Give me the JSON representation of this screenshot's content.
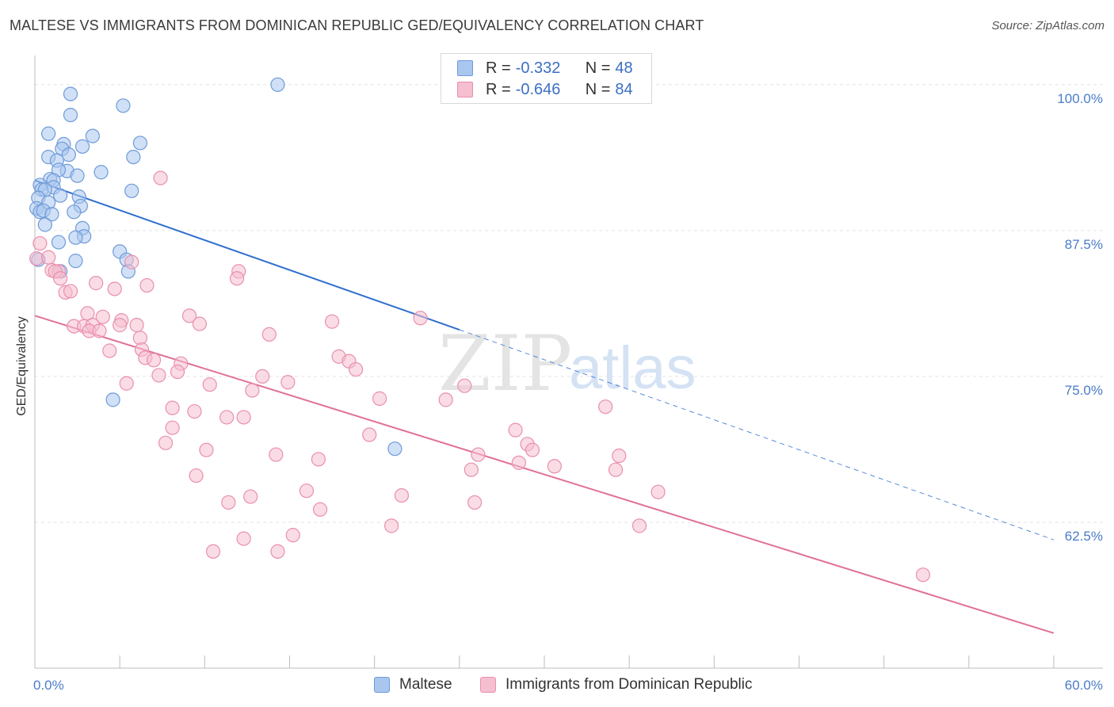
{
  "title": "MALTESE VS IMMIGRANTS FROM DOMINICAN REPUBLIC GED/EQUIVALENCY CORRELATION CHART",
  "source": "Source: ZipAtlas.com",
  "watermark": {
    "zip": "ZIP",
    "atlas": "atlas"
  },
  "legend": {
    "rows": [
      {
        "r_label": "R = ",
        "r_value": "-0.332",
        "n_label": "N = ",
        "n_value": "48",
        "color": "#a9c6ef",
        "border": "#6f9bd9"
      },
      {
        "r_label": "R = ",
        "r_value": "-0.646",
        "n_label": "N = ",
        "n_value": "84",
        "color": "#f6bfd0",
        "border": "#e98fae"
      }
    ]
  },
  "bottom_legend": [
    {
      "label": "Maltese",
      "color": "#a9c6ef",
      "border": "#6f9bd9"
    },
    {
      "label": "Immigrants from Dominican Republic",
      "color": "#f6bfd0",
      "border": "#e98fae"
    }
  ],
  "chart_data": {
    "type": "scatter",
    "title": "MALTESE VS IMMIGRANTS FROM DOMINICAN REPUBLIC GED/EQUIVALENCY CORRELATION CHART",
    "xlabel": "",
    "ylabel": "GED/Equivalency",
    "xlim": [
      0,
      60
    ],
    "ylim": [
      50,
      102.5
    ],
    "x_tick_labels": [
      "0.0%",
      "60.0%"
    ],
    "y_ticks": [
      62.5,
      75.0,
      87.5,
      100.0
    ],
    "y_tick_labels": [
      "62.5%",
      "75.0%",
      "87.5%",
      "100.0%"
    ],
    "grid": true,
    "legend_position": "top-center",
    "series": [
      {
        "name": "Maltese",
        "color": "#6f9bd9",
        "fill": "#a9c6ef",
        "trend": {
          "x": [
            0,
            25
          ],
          "y": [
            91.8,
            79.0
          ],
          "dashed_to": [
            60,
            61.0
          ],
          "color": "#2f6fce"
        },
        "points": [
          [
            14.3,
            100
          ],
          [
            2.1,
            99.2
          ],
          [
            5.2,
            98.2
          ],
          [
            2.1,
            97.4
          ],
          [
            0.8,
            95.8
          ],
          [
            3.4,
            95.6
          ],
          [
            6.2,
            95.0
          ],
          [
            1.7,
            94.9
          ],
          [
            2.8,
            94.7
          ],
          [
            1.6,
            94.5
          ],
          [
            2.0,
            94.0
          ],
          [
            0.8,
            93.8
          ],
          [
            1.3,
            93.5
          ],
          [
            5.8,
            93.8
          ],
          [
            1.9,
            92.6
          ],
          [
            3.9,
            92.5
          ],
          [
            1.4,
            92.7
          ],
          [
            2.5,
            92.2
          ],
          [
            0.9,
            91.9
          ],
          [
            1.1,
            91.8
          ],
          [
            0.3,
            91.4
          ],
          [
            0.4,
            91.0
          ],
          [
            1.1,
            91.2
          ],
          [
            0.6,
            91.0
          ],
          [
            5.7,
            90.9
          ],
          [
            1.5,
            90.5
          ],
          [
            2.6,
            90.4
          ],
          [
            0.2,
            90.3
          ],
          [
            0.8,
            89.9
          ],
          [
            2.7,
            89.6
          ],
          [
            0.1,
            89.4
          ],
          [
            0.3,
            89.1
          ],
          [
            0.5,
            89.2
          ],
          [
            2.3,
            89.1
          ],
          [
            1.0,
            88.9
          ],
          [
            0.6,
            88.0
          ],
          [
            2.8,
            87.7
          ],
          [
            2.9,
            87.0
          ],
          [
            2.4,
            86.9
          ],
          [
            1.4,
            86.5
          ],
          [
            5.0,
            85.7
          ],
          [
            5.4,
            85.0
          ],
          [
            2.4,
            84.9
          ],
          [
            0.2,
            85.0
          ],
          [
            1.5,
            84.0
          ],
          [
            5.5,
            84.0
          ],
          [
            4.6,
            73.0
          ],
          [
            21.2,
            68.8
          ]
        ]
      },
      {
        "name": "Immigrants from Dominican Republic",
        "color": "#e98fae",
        "fill": "#f6bfd0",
        "trend": {
          "x": [
            0,
            60
          ],
          "y": [
            80.2,
            53.0
          ],
          "color": "#e0709a"
        },
        "points": [
          [
            0.3,
            86.4
          ],
          [
            0.1,
            85.1
          ],
          [
            0.8,
            85.2
          ],
          [
            1.0,
            84.1
          ],
          [
            1.4,
            84.0
          ],
          [
            1.2,
            84.0
          ],
          [
            5.7,
            84.8
          ],
          [
            12.0,
            84.0
          ],
          [
            1.5,
            83.4
          ],
          [
            3.6,
            83.0
          ],
          [
            4.7,
            82.5
          ],
          [
            6.6,
            82.8
          ],
          [
            11.9,
            83.4
          ],
          [
            1.8,
            82.2
          ],
          [
            2.1,
            82.3
          ],
          [
            7.4,
            92.0
          ],
          [
            3.1,
            80.4
          ],
          [
            9.1,
            80.2
          ],
          [
            4.0,
            80.1
          ],
          [
            5.1,
            79.8
          ],
          [
            2.3,
            79.3
          ],
          [
            17.5,
            79.7
          ],
          [
            22.7,
            80.0
          ],
          [
            2.9,
            79.3
          ],
          [
            3.4,
            79.4
          ],
          [
            6.0,
            79.4
          ],
          [
            9.7,
            79.5
          ],
          [
            5.0,
            79.4
          ],
          [
            3.2,
            78.9
          ],
          [
            3.8,
            78.9
          ],
          [
            13.8,
            78.6
          ],
          [
            6.2,
            78.3
          ],
          [
            4.4,
            77.2
          ],
          [
            6.3,
            77.3
          ],
          [
            6.5,
            76.6
          ],
          [
            17.9,
            76.7
          ],
          [
            7.0,
            76.4
          ],
          [
            18.5,
            76.3
          ],
          [
            8.6,
            76.1
          ],
          [
            8.4,
            75.4
          ],
          [
            7.3,
            75.1
          ],
          [
            18.9,
            75.6
          ],
          [
            13.4,
            75.0
          ],
          [
            5.4,
            74.4
          ],
          [
            14.9,
            74.5
          ],
          [
            10.3,
            74.3
          ],
          [
            12.8,
            73.8
          ],
          [
            25.3,
            74.2
          ],
          [
            20.3,
            73.1
          ],
          [
            24.2,
            73.0
          ],
          [
            8.1,
            72.3
          ],
          [
            9.4,
            72.0
          ],
          [
            33.6,
            72.4
          ],
          [
            11.3,
            71.5
          ],
          [
            12.3,
            71.5
          ],
          [
            8.1,
            70.6
          ],
          [
            19.7,
            70.0
          ],
          [
            28.3,
            70.4
          ],
          [
            7.7,
            69.3
          ],
          [
            29.0,
            69.2
          ],
          [
            10.1,
            68.7
          ],
          [
            29.3,
            68.7
          ],
          [
            14.2,
            68.3
          ],
          [
            26.1,
            68.3
          ],
          [
            34.4,
            68.2
          ],
          [
            16.7,
            67.9
          ],
          [
            28.5,
            67.6
          ],
          [
            30.6,
            67.3
          ],
          [
            25.7,
            67.0
          ],
          [
            34.2,
            67.0
          ],
          [
            9.5,
            66.5
          ],
          [
            16.0,
            65.2
          ],
          [
            12.7,
            64.7
          ],
          [
            21.6,
            64.8
          ],
          [
            36.7,
            65.1
          ],
          [
            11.4,
            64.2
          ],
          [
            25.9,
            64.2
          ],
          [
            16.8,
            63.6
          ],
          [
            21.0,
            62.2
          ],
          [
            35.6,
            62.2
          ],
          [
            15.2,
            61.4
          ],
          [
            12.3,
            61.1
          ],
          [
            10.5,
            60.0
          ],
          [
            14.3,
            60.0
          ],
          [
            52.3,
            58.0
          ]
        ]
      }
    ]
  }
}
